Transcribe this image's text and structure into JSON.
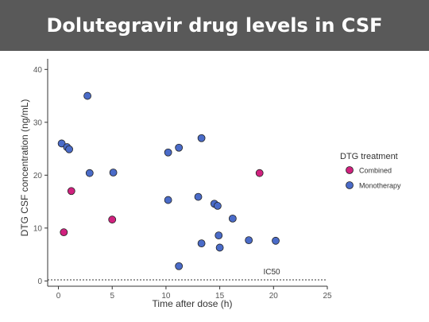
{
  "slide": {
    "title": "Dolutegravir drug levels in CSF"
  },
  "colors": {
    "banner": "#595959",
    "combined": "#d0217e",
    "monotherapy": "#4a6bc8"
  },
  "chart_data": {
    "type": "scatter",
    "xlabel": "Time after dose (h)",
    "ylabel": "DTG CSF concentration (ng/mL)",
    "xlim": [
      -1,
      25
    ],
    "ylim": [
      -1,
      42
    ],
    "xticks": [
      0,
      5,
      10,
      15,
      20,
      25
    ],
    "yticks": [
      0,
      10,
      20,
      30,
      40
    ],
    "grid": false,
    "legend": {
      "title": "DTG treatment",
      "placement": "right"
    },
    "reference_line": {
      "y": 0.2,
      "label": "IC50",
      "style": "dotted"
    },
    "series": [
      {
        "name": "Combined",
        "color": "#d0217e",
        "points": [
          [
            0.5,
            9.2
          ],
          [
            1.2,
            17.0
          ],
          [
            5.0,
            11.6
          ],
          [
            18.7,
            20.4
          ]
        ]
      },
      {
        "name": "Monotherapy",
        "color": "#4a6bc8",
        "points": [
          [
            0.3,
            26.0
          ],
          [
            0.8,
            25.3
          ],
          [
            1.0,
            24.9
          ],
          [
            2.7,
            35.0
          ],
          [
            2.9,
            20.4
          ],
          [
            5.1,
            20.5
          ],
          [
            10.2,
            24.3
          ],
          [
            10.2,
            15.3
          ],
          [
            11.2,
            25.2
          ],
          [
            11.2,
            2.8
          ],
          [
            13.0,
            15.9
          ],
          [
            13.3,
            27.0
          ],
          [
            13.3,
            7.1
          ],
          [
            14.5,
            14.6
          ],
          [
            14.8,
            14.2
          ],
          [
            14.9,
            8.6
          ],
          [
            15.0,
            6.3
          ],
          [
            16.2,
            11.8
          ],
          [
            17.7,
            7.7
          ],
          [
            20.2,
            7.6
          ]
        ]
      }
    ]
  }
}
